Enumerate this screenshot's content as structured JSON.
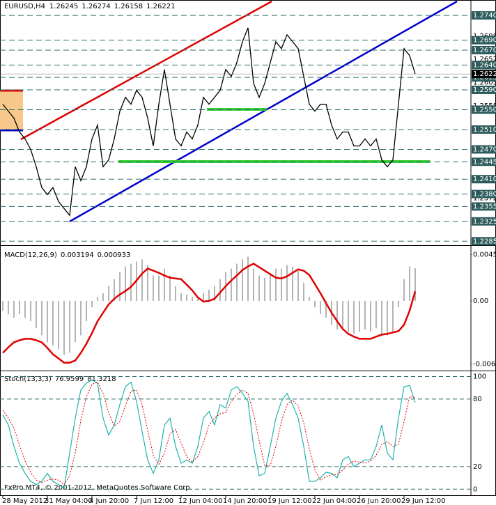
{
  "chart_data": [
    {
      "type": "line",
      "title": "EURUSD,H4",
      "header_values": [
        1.26245,
        1.26274,
        1.26158,
        1.26221
      ],
      "categories": [
        "28 May 2012",
        null,
        null,
        null,
        null,
        null,
        null,
        null,
        "31 May 04:00",
        null,
        null,
        null,
        null,
        null,
        null,
        null,
        "4 Jun 20:00",
        null,
        null,
        null,
        null,
        null,
        null,
        null,
        "7 Jun 12:00",
        null,
        null,
        null,
        null,
        null,
        null,
        null,
        "12 Jun 04:00",
        null,
        null,
        null,
        null,
        null,
        null,
        null,
        "14 Jun 20:00",
        null,
        null,
        null,
        null,
        null,
        null,
        null,
        "19 Jun 12:00",
        null,
        null,
        null,
        null,
        null,
        null,
        null,
        "22 Jun 04:00",
        null,
        null,
        null,
        null,
        null,
        null,
        null,
        "26 Jun 20:00",
        null,
        null,
        null,
        null,
        null,
        null,
        null,
        "29 Jun 12:00",
        null,
        null
      ],
      "values": [
        1.2561,
        1.2547,
        1.2533,
        1.2505,
        1.2491,
        1.247,
        1.2435,
        1.2393,
        1.2379,
        1.2393,
        1.2365,
        1.2351,
        1.2337,
        1.2435,
        1.2407,
        1.2435,
        1.2491,
        1.2519,
        1.2435,
        1.2449,
        1.2491,
        1.2547,
        1.2575,
        1.2561,
        1.2589,
        1.2575,
        1.2533,
        1.2477,
        1.2561,
        1.2631,
        1.2561,
        1.2491,
        1.2477,
        1.2505,
        1.2491,
        1.2519,
        1.2575,
        1.2561,
        1.2575,
        1.2589,
        1.2631,
        1.2617,
        1.2645,
        1.2687,
        1.2715,
        1.2603,
        1.2575,
        1.2603,
        1.2645,
        1.2687,
        1.2673,
        1.2701,
        1.2687,
        1.2673,
        1.2617,
        1.2561,
        1.2547,
        1.2561,
        1.2561,
        1.2519,
        1.2491,
        1.2505,
        1.2505,
        1.2477,
        1.2477,
        1.2491,
        1.2477,
        1.2491,
        1.2449,
        1.2435,
        1.2449,
        1.2561,
        1.2673,
        1.2659,
        1.2622
      ],
      "color": "#000000",
      "ylim": [
        1.2277,
        1.2771
      ],
      "yticks": [
        1.2698,
        1.2652,
        1.2605,
        1.2558,
        1.2372
      ],
      "levels": [
        {
          "value": 1.274,
          "label": "1.2740"
        },
        {
          "value": 1.269,
          "label": "1.2690"
        },
        {
          "value": 1.267,
          "label": "1.2670"
        },
        {
          "value": 1.264,
          "label": "1.2640"
        },
        1.2615,
        {
          "value": 1.259,
          "label": "1.2590"
        },
        {
          "value": 1.255,
          "label": "1.2550"
        },
        {
          "value": 1.251,
          "label": "1.2510"
        },
        {
          "value": 1.247,
          "label": "1.2470"
        },
        1.2445,
        {
          "value": 1.241,
          "label": "1.2410"
        },
        {
          "value": 1.238,
          "label": "1.2380"
        },
        1.2355,
        1.2325,
        1.2285
      ],
      "current_price": 1.2622
    },
    {
      "type": "macd",
      "title": "MACD(12,26,9)",
      "header_values": [
        0.003194,
        0.000933
      ],
      "series": [
        {
          "color": "#b4b4b4",
          "values": [
            -0.00096,
            -0.0013,
            -0.00164,
            -0.0013,
            -0.00164,
            -0.00199,
            -0.00267,
            -0.00336,
            -0.00404,
            -0.00438,
            -0.00473,
            -0.00527,
            -0.00507,
            -0.00404,
            -0.00336,
            -0.00199,
            -0.00062,
            0.00041,
            0.00075,
            0.00144,
            0.00212,
            0.00281,
            0.00336,
            0.00363,
            0.00384,
            0.00404,
            0.00349,
            0.00247,
            0.00247,
            0.00315,
            0.00247,
            0.00144,
            0.00075,
            0.00062,
            0.00041,
            0.00021,
            0.00075,
            0.0011,
            0.00144,
            0.00212,
            0.00281,
            0.00315,
            0.00363,
            0.00404,
            0.00432,
            0.00315,
            0.00247,
            0.00226,
            0.00267,
            0.00315,
            0.00315,
            0.00349,
            0.00336,
            0.00295,
            0.00178,
            0.00041,
            -0.00062,
            -0.0013,
            -0.00164,
            -0.00233,
            -0.00281,
            -0.00267,
            -0.00301,
            -0.00322,
            -0.00301,
            -0.00281,
            -0.00301,
            -0.00267,
            -0.00322,
            -0.00336,
            -0.00301,
            -0.00062,
            0.00212,
            0.00336,
            0.00319
          ]
        },
        {
          "color": "#e00000",
          "values": [
            -0.00507,
            -0.00452,
            -0.00404,
            -0.00384,
            -0.0037,
            -0.0037,
            -0.00384,
            -0.00404,
            -0.00459,
            -0.00521,
            -0.00562,
            -0.00603,
            -0.00603,
            -0.00582,
            -0.00507,
            -0.00418,
            -0.00315,
            -0.00199,
            -0.00116,
            -0.00034,
            0.00021,
            0.00062,
            0.00096,
            0.00137,
            0.00199,
            0.00267,
            0.00315,
            0.00295,
            0.00274,
            0.00247,
            0.00226,
            0.00219,
            0.00212,
            0.00158,
            0.00103,
            0.00034,
            -7e-05,
            0,
            0.00021,
            0.00082,
            0.00144,
            0.00199,
            0.00247,
            0.00301,
            0.00336,
            0.00363,
            0.00329,
            0.00295,
            0.0026,
            0.00226,
            0.00219,
            0.0024,
            0.00274,
            0.00308,
            0.00295,
            0.00253,
            0.00164,
            0.00075,
            -0.00021,
            -0.00116,
            -0.00199,
            -0.00274,
            -0.00322,
            -0.00349,
            -0.0037,
            -0.0037,
            -0.0037,
            -0.00349,
            -0.00329,
            -0.00322,
            -0.00308,
            -0.00295,
            -0.00233,
            -0.00096,
            0.00093
          ]
        }
      ],
      "ylim": [
        -0.0068,
        0.0053
      ],
      "yticks": [
        0.004519,
        {
          "value": 0,
          "label": "0.00"
        },
        -0.00614
      ]
    },
    {
      "type": "stoch",
      "title": "Stoch(13,3,3)",
      "header_values": [
        76.9599,
        81.3218
      ],
      "series": [
        {
          "color": "#20b2aa",
          "values": [
            66,
            57,
            38,
            23,
            14,
            7,
            4,
            7,
            14,
            7,
            4,
            1,
            32,
            63,
            88,
            94,
            97,
            94,
            63,
            48,
            57,
            75,
            91,
            95,
            78,
            51,
            26,
            14,
            26,
            57,
            63,
            38,
            23,
            26,
            23,
            38,
            63,
            69,
            57,
            75,
            72,
            88,
            91,
            85,
            78,
            38,
            12,
            14,
            38,
            63,
            78,
            85,
            75,
            63,
            38,
            7,
            7,
            10,
            15,
            14,
            10,
            26,
            29,
            20,
            23,
            26,
            26,
            38,
            57,
            32,
            26,
            63,
            91,
            92,
            76.9599
          ]
        },
        {
          "color": "#e00000",
          "values": [
            70,
            63,
            54,
            39,
            25,
            15,
            8,
            6,
            8,
            9,
            8,
            4,
            12,
            32,
            61,
            82,
            93,
            95,
            85,
            68,
            56,
            60,
            74,
            87,
            88,
            75,
            52,
            30,
            22,
            32,
            49,
            53,
            41,
            29,
            24,
            29,
            41,
            57,
            63,
            67,
            68,
            78,
            84,
            88,
            85,
            67,
            43,
            21,
            21,
            38,
            60,
            75,
            79,
            74,
            59,
            36,
            17,
            8,
            11,
            13,
            13,
            17,
            22,
            25,
            24,
            23,
            25,
            30,
            40,
            42,
            38,
            40,
            60,
            82,
            81.3218
          ]
        }
      ],
      "ylim": [
        -6,
        104
      ],
      "yticks": [
        0,
        20,
        80,
        100
      ]
    }
  ],
  "footer": "FxPro MT4, © 2001-2012, MetaQuotes Software Corp."
}
